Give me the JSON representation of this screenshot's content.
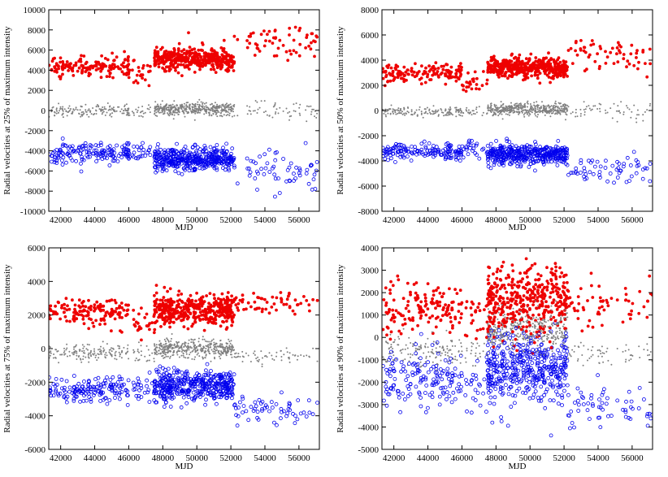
{
  "chart_data": [
    {
      "type": "scatter",
      "xlabel": "MJD",
      "ylabel": "Radial velocities  at 25% of maximum intensity",
      "xlim": [
        41300,
        57200
      ],
      "ylim": [
        -10000,
        10000
      ],
      "xticks": [
        "42000",
        "44000",
        "46000",
        "48000",
        "50000",
        "52000",
        "54000",
        "56000"
      ],
      "yticks": [
        "-10000",
        "-8000",
        "-6000",
        "-4000",
        "-2000",
        "0",
        "2000",
        "4000",
        "6000",
        "8000",
        "10000"
      ],
      "segments": [
        {
          "range": [
            41300,
            46000
          ],
          "red": 4400,
          "gray": 0,
          "blue": -4300,
          "n": 150,
          "spread": 500
        },
        {
          "range": [
            46000,
            47500
          ],
          "red": 3800,
          "gray": -100,
          "blue": -4000,
          "n": 25,
          "spread": 500
        },
        {
          "range": [
            47500,
            52200
          ],
          "red": 5100,
          "gray": 150,
          "blue": -4800,
          "n": 420,
          "spread": 550
        },
        {
          "range": [
            52200,
            57200
          ],
          "red": 7000,
          "gray": 100,
          "blue": -5800,
          "n": 60,
          "spread": 1000
        }
      ]
    },
    {
      "type": "scatter",
      "xlabel": "MJD",
      "ylabel": "Radial velocities  at 50% of maximum intensity",
      "xlim": [
        41300,
        57200
      ],
      "ylim": [
        -8000,
        8000
      ],
      "xticks": [
        "42000",
        "44000",
        "46000",
        "48000",
        "50000",
        "52000",
        "54000",
        "56000"
      ],
      "yticks": [
        "-8000",
        "-6000",
        "-4000",
        "-2000",
        "0",
        "2000",
        "4000",
        "6000",
        "8000"
      ],
      "segments": [
        {
          "range": [
            41300,
            46000
          ],
          "red": 3000,
          "gray": -100,
          "blue": -3200,
          "n": 150,
          "spread": 350
        },
        {
          "range": [
            46000,
            47500
          ],
          "red": 2300,
          "gray": -200,
          "blue": -3000,
          "n": 25,
          "spread": 400
        },
        {
          "range": [
            47500,
            52200
          ],
          "red": 3400,
          "gray": 100,
          "blue": -3500,
          "n": 420,
          "spread": 400
        },
        {
          "range": [
            52200,
            57200
          ],
          "red": 4500,
          "gray": -100,
          "blue": -4700,
          "n": 60,
          "spread": 700
        }
      ]
    },
    {
      "type": "scatter",
      "xlabel": "MJD",
      "ylabel": "Radial velocities  at 75% of maximum intensity",
      "xlim": [
        41300,
        57200
      ],
      "ylim": [
        -6000,
        6000
      ],
      "xticks": [
        "42000",
        "44000",
        "46000",
        "48000",
        "50000",
        "52000",
        "54000",
        "56000"
      ],
      "yticks": [
        "-6000",
        "-4000",
        "-2000",
        "0",
        "2000",
        "4000",
        "6000"
      ],
      "segments": [
        {
          "range": [
            41300,
            46000
          ],
          "red": 2200,
          "gray": -200,
          "blue": -2500,
          "n": 150,
          "spread": 400
        },
        {
          "range": [
            46000,
            47500
          ],
          "red": 1500,
          "gray": -300,
          "blue": -2400,
          "n": 25,
          "spread": 450
        },
        {
          "range": [
            47500,
            52200
          ],
          "red": 2300,
          "gray": 0,
          "blue": -2200,
          "n": 420,
          "spread": 450
        },
        {
          "range": [
            52200,
            57200
          ],
          "red": 2700,
          "gray": -500,
          "blue": -3700,
          "n": 60,
          "spread": 400
        }
      ]
    },
    {
      "type": "scatter",
      "xlabel": "MJD",
      "ylabel": "Radial velocities  at 90% of maximum intensity",
      "xlim": [
        41300,
        57200
      ],
      "ylim": [
        -5000,
        4000
      ],
      "xticks": [
        "42000",
        "44000",
        "46000",
        "48000",
        "50000",
        "52000",
        "54000",
        "56000"
      ],
      "yticks": [
        "-5000",
        "-4000",
        "-3000",
        "-2000",
        "-1000",
        "0",
        "1000",
        "2000",
        "3000",
        "4000"
      ],
      "segments": [
        {
          "range": [
            41300,
            46000
          ],
          "red": 1200,
          "gray": -600,
          "blue": -1900,
          "n": 150,
          "spread": 600
        },
        {
          "range": [
            46000,
            47500
          ],
          "red": 800,
          "gray": -700,
          "blue": -2000,
          "n": 25,
          "spread": 600
        },
        {
          "range": [
            47500,
            52200
          ],
          "red": 1600,
          "gray": 300,
          "blue": -1400,
          "n": 420,
          "spread": 800
        },
        {
          "range": [
            52200,
            57200
          ],
          "red": 1500,
          "gray": -700,
          "blue": -3200,
          "n": 60,
          "spread": 450
        }
      ]
    }
  ],
  "colors": {
    "red_series": "#ee0000",
    "gray_series": "#808080",
    "blue_series": "#0000ee"
  }
}
